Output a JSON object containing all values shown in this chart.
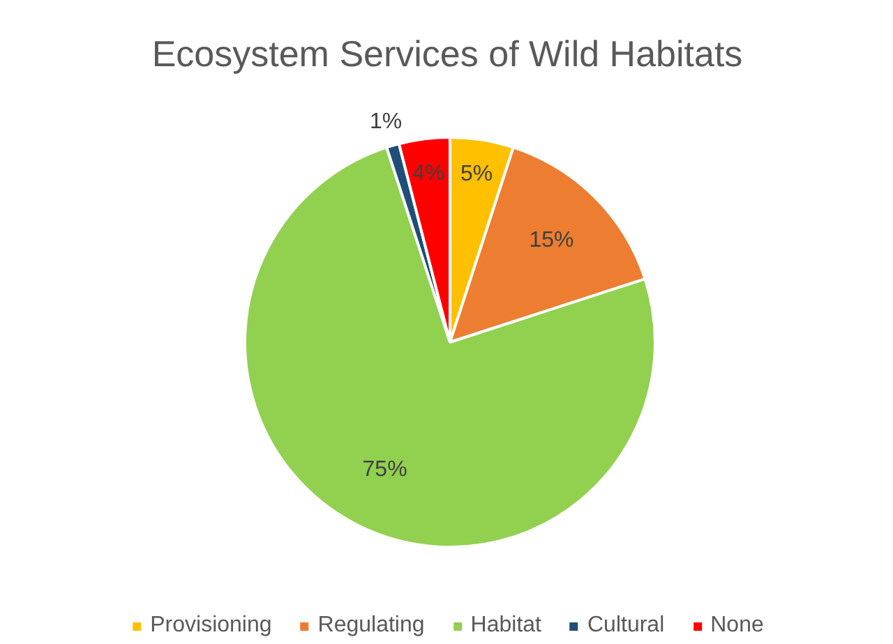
{
  "chart_data": {
    "type": "pie",
    "title": "Ecosystem Services of Wild Habitats",
    "categories": [
      "Provisioning",
      "Regulating",
      "Habitat",
      "Cultural",
      "None"
    ],
    "values": [
      5,
      15,
      75,
      1,
      4
    ],
    "colors": [
      "#ffc000",
      "#ed7d31",
      "#92d050",
      "#1f4e79",
      "#ff0000"
    ],
    "value_labels": [
      "5%",
      "15%",
      "75%",
      "1%",
      "4%"
    ],
    "legend": "bottom"
  }
}
